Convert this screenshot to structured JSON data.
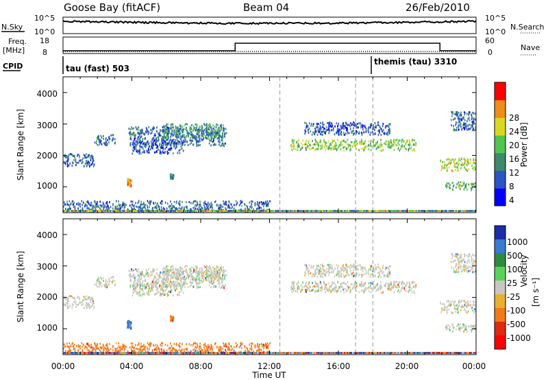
{
  "header": {
    "station": "Goose Bay (fitACF)",
    "beam": "Beam 04",
    "date": "26/Feb/2010"
  },
  "noise_panel": {
    "left_label": "N.Sky",
    "right_label": "N.Search",
    "left_ticks": [
      "10^5",
      "10^0"
    ],
    "right_ticks": [
      "10^5",
      "10^0"
    ]
  },
  "freq_panel": {
    "left_label": "Freq.",
    "left_unit": "[MHz]",
    "right_label": "Nave",
    "left_ticks": [
      "18",
      "8"
    ],
    "right_ticks": [
      "60",
      "0"
    ],
    "step": {
      "times": [
        0,
        10,
        21.9,
        24
      ],
      "levels": [
        "low",
        "high",
        "low"
      ]
    }
  },
  "cpid_panel": {
    "label": "CPID",
    "segments": [
      {
        "start": 0,
        "name": "tau (fast) 503"
      },
      {
        "start": 18,
        "name": "themis (tau) 3310"
      }
    ]
  },
  "power_panel": {
    "ylabel": "Slant Range [km]",
    "yticks": [
      "4000",
      "3000",
      "2000",
      "1000"
    ],
    "colorbar_title": "Power [dB]",
    "colorbar_labels": [
      "28",
      "24",
      "20",
      "16",
      "12",
      "8",
      "4"
    ],
    "colors": [
      "#0000ff",
      "#2a55c4",
      "#3d8a6a",
      "#52c452",
      "#d8d820",
      "#f08c18",
      "#ff0000"
    ]
  },
  "velocity_panel": {
    "ylabel": "Slant Range [km]",
    "yticks": [
      "4000",
      "3000",
      "2000",
      "1000"
    ],
    "colorbar_title": "Velocity",
    "colorbar_unit": "[m s⁻¹]",
    "colorbar_labels": [
      "1000",
      "500",
      "100",
      "25",
      "-25",
      "-100",
      "-500",
      "-1000"
    ],
    "colors": [
      "#1a2ea8",
      "#3a7ad0",
      "#2e8a40",
      "#5ad25a",
      "#c8c8c0",
      "#e8b030",
      "#f07a1a",
      "#e02a10",
      "#ff0000"
    ]
  },
  "x_axis": {
    "title": "Time UT",
    "ticks": [
      "00:00",
      "04:00",
      "08:00",
      "12:00",
      "16:00",
      "20:00",
      "00:00"
    ]
  },
  "chart_data": {
    "type": "heatmap",
    "x_range_hours": [
      0,
      24
    ],
    "y_range_km": [
      180,
      4500
    ],
    "power_scale_db": [
      0,
      30
    ],
    "velocity_scale_ms": [
      -1000,
      1000
    ],
    "scatter_regions": [
      {
        "t": [
          0.0,
          1.8
        ],
        "r": [
          1650,
          2050
        ],
        "power_db": 8,
        "velocity_ms": 0
      },
      {
        "t": [
          1.8,
          3.0
        ],
        "r": [
          2300,
          2650
        ],
        "power_db": 8,
        "velocity_ms": 0
      },
      {
        "t": [
          3.8,
          9.5
        ],
        "r": [
          2300,
          2900
        ],
        "power_db": 8,
        "velocity_ms": 0
      },
      {
        "t": [
          5.8,
          9.3
        ],
        "r": [
          2550,
          3000
        ],
        "power_db": 12,
        "velocity_ms": 0
      },
      {
        "t": [
          4.0,
          7.0
        ],
        "r": [
          2050,
          2450
        ],
        "power_db": 6,
        "velocity_ms": 0
      },
      {
        "t": [
          3.7,
          3.95
        ],
        "r": [
          1000,
          1250
        ],
        "power_db": 22,
        "velocity_ms": 300
      },
      {
        "t": [
          6.2,
          6.4
        ],
        "r": [
          1250,
          1400
        ],
        "power_db": 10,
        "velocity_ms": -100
      },
      {
        "t": [
          0.0,
          12.0
        ],
        "r": [
          200,
          550
        ],
        "power_db": 8,
        "velocity_ms": -150
      },
      {
        "t": [
          13.2,
          20.5
        ],
        "r": [
          2150,
          2500
        ],
        "power_db": 16,
        "velocity_ms": 0
      },
      {
        "t": [
          14.0,
          19.0
        ],
        "r": [
          2650,
          3050
        ],
        "power_db": 6,
        "velocity_ms": 0
      },
      {
        "t": [
          21.9,
          24.0
        ],
        "r": [
          1500,
          1900
        ],
        "power_db": 18,
        "velocity_ms": 0
      },
      {
        "t": [
          22.2,
          24.0
        ],
        "r": [
          900,
          1150
        ],
        "power_db": 14,
        "velocity_ms": 0
      },
      {
        "t": [
          22.5,
          24.0
        ],
        "r": [
          2800,
          3400
        ],
        "power_db": 8,
        "velocity_ms": 0
      }
    ]
  }
}
